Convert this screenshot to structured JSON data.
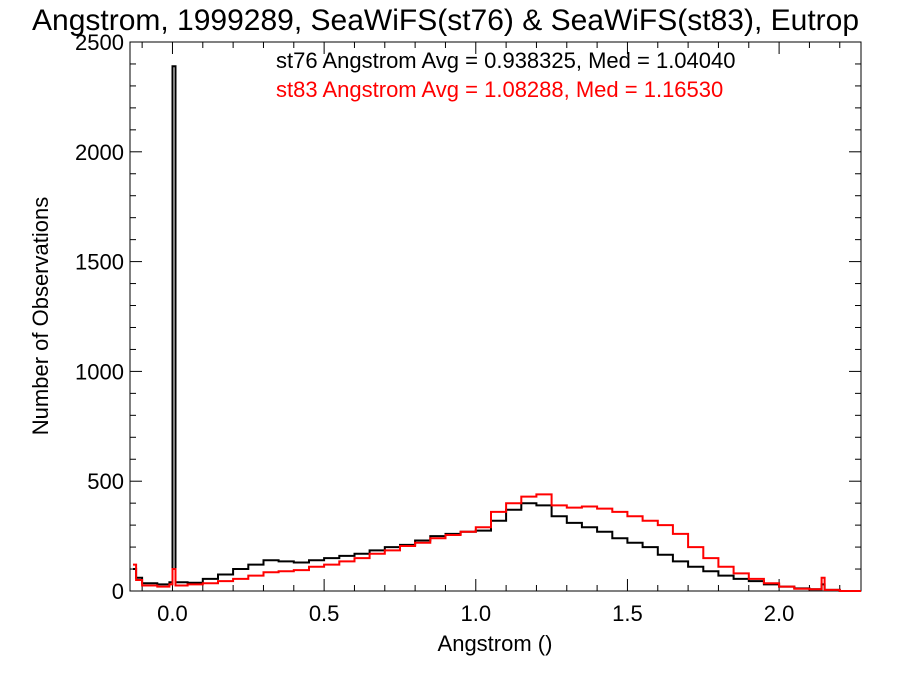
{
  "chart_data": {
    "type": "line",
    "title": "Angstrom, 1999289, SeaWiFS(st76) & SeaWiFS(st83), Eutrop",
    "xlabel": "Angstrom ()",
    "ylabel": "Number of Observations",
    "xlim": [
      -0.14,
      2.27
    ],
    "ylim": [
      0,
      2500
    ],
    "x_ticks": [
      "0.0",
      "0.5",
      "1.0",
      "1.5",
      "2.0"
    ],
    "y_ticks": [
      "0",
      "500",
      "1000",
      "1500",
      "2000",
      "2500"
    ],
    "series": [
      {
        "name": "st76",
        "color": "#000000",
        "x": [
          -0.13,
          -0.12,
          -0.1,
          -0.05,
          -0.01,
          0.0,
          0.01,
          0.05,
          0.1,
          0.15,
          0.2,
          0.25,
          0.3,
          0.35,
          0.4,
          0.45,
          0.5,
          0.55,
          0.6,
          0.65,
          0.7,
          0.75,
          0.8,
          0.85,
          0.9,
          0.95,
          1.0,
          1.05,
          1.1,
          1.15,
          1.2,
          1.25,
          1.3,
          1.35,
          1.4,
          1.45,
          1.5,
          1.55,
          1.6,
          1.65,
          1.7,
          1.75,
          1.8,
          1.85,
          1.9,
          1.95,
          2.0,
          2.05,
          2.1,
          2.14,
          2.15,
          2.2,
          2.27
        ],
        "values": [
          100,
          60,
          35,
          30,
          40,
          2390,
          40,
          38,
          55,
          75,
          100,
          120,
          140,
          135,
          130,
          140,
          150,
          160,
          170,
          185,
          200,
          210,
          230,
          250,
          260,
          270,
          275,
          320,
          370,
          400,
          390,
          340,
          310,
          290,
          270,
          240,
          220,
          200,
          165,
          135,
          110,
          90,
          70,
          55,
          45,
          30,
          20,
          12,
          8,
          30,
          5,
          0,
          0
        ]
      },
      {
        "name": "st83",
        "color": "#ff0000",
        "x": [
          -0.13,
          -0.12,
          -0.1,
          -0.05,
          -0.01,
          0.0,
          0.01,
          0.05,
          0.1,
          0.15,
          0.2,
          0.25,
          0.3,
          0.35,
          0.4,
          0.45,
          0.5,
          0.55,
          0.6,
          0.65,
          0.7,
          0.75,
          0.8,
          0.85,
          0.9,
          0.95,
          1.0,
          1.05,
          1.1,
          1.15,
          1.2,
          1.25,
          1.3,
          1.35,
          1.4,
          1.45,
          1.5,
          1.55,
          1.6,
          1.65,
          1.7,
          1.75,
          1.8,
          1.85,
          1.9,
          1.95,
          2.0,
          2.05,
          2.1,
          2.14,
          2.15,
          2.2,
          2.27
        ],
        "values": [
          120,
          50,
          25,
          20,
          30,
          100,
          25,
          30,
          35,
          45,
          55,
          70,
          85,
          90,
          95,
          110,
          120,
          135,
          150,
          170,
          185,
          205,
          220,
          240,
          255,
          270,
          290,
          360,
          400,
          430,
          440,
          390,
          380,
          385,
          375,
          360,
          340,
          320,
          300,
          260,
          200,
          150,
          110,
          80,
          55,
          35,
          20,
          10,
          8,
          60,
          5,
          0,
          0
        ]
      }
    ],
    "annotations": [
      {
        "text": "st76 Angstrom Avg = 0.938325, Med = 1.04040",
        "color": "#000000"
      },
      {
        "text": "st83 Angstrom Avg = 1.08288, Med = 1.16530",
        "color": "#ff0000"
      }
    ],
    "grid": false
  }
}
